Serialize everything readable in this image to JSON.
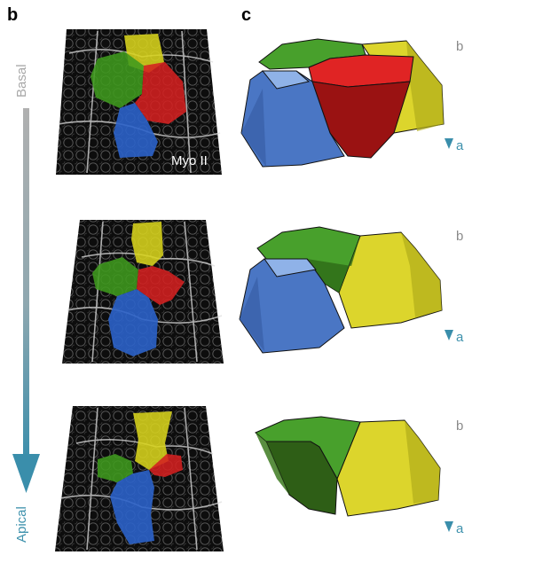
{
  "figure": {
    "panel_b_label": "b",
    "panel_c_label": "c",
    "axis_top_label": "Basal",
    "axis_bottom_label": "Apical",
    "stain_label": "Myo II",
    "arrow_top_letter": "b",
    "arrow_bottom_letter": "a",
    "colors": {
      "green": "#3f9a1e",
      "yellow": "#d8d41c",
      "red": "#d42020",
      "blue": "#2b62c9",
      "axis_gray": "#9a9a9a",
      "axis_teal": "#3f92ad"
    }
  }
}
